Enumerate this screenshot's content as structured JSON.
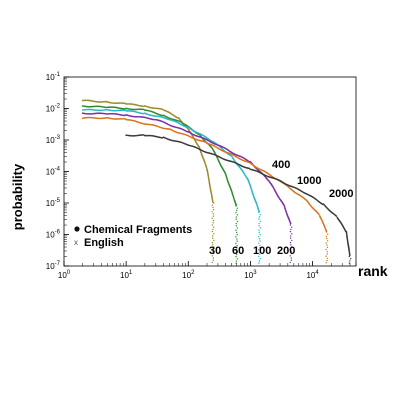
{
  "chart_data": {
    "type": "scatter",
    "xlabel": "rank",
    "ylabel": "probability",
    "x_scale": "log",
    "y_scale": "log",
    "xlim": [
      1,
      50000
    ],
    "ylim": [
      1e-07,
      0.1
    ],
    "x_ticks": [
      {
        "base": "10",
        "exp": "0"
      },
      {
        "base": "10",
        "exp": "1"
      },
      {
        "base": "10",
        "exp": "2"
      },
      {
        "base": "10",
        "exp": "3"
      },
      {
        "base": "10",
        "exp": "4"
      }
    ],
    "y_ticks": [
      {
        "base": "10",
        "exp": "-1"
      },
      {
        "base": "10",
        "exp": "-2"
      },
      {
        "base": "10",
        "exp": "-3"
      },
      {
        "base": "10",
        "exp": "-4"
      },
      {
        "base": "10",
        "exp": "-5"
      },
      {
        "base": "10",
        "exp": "-6"
      },
      {
        "base": "10",
        "exp": "-7"
      }
    ],
    "legend": {
      "placement": "bottom-left",
      "entries": [
        {
          "label": "Chemical Fragments",
          "marker": "●"
        },
        {
          "label": "English",
          "marker": "x"
        }
      ]
    },
    "annotations": [
      "400",
      "1000",
      "2000",
      "30",
      "60",
      "100",
      "200"
    ],
    "series": [
      {
        "color": "#9c8a2c",
        "cutoff_rank": 250,
        "points": [
          [
            2,
            0.018
          ],
          [
            5,
            0.016
          ],
          [
            10,
            0.014
          ],
          [
            20,
            0.012
          ],
          [
            40,
            0.009
          ],
          [
            70,
            0.005
          ],
          [
            100,
            0.0022
          ],
          [
            150,
            0.0006
          ],
          [
            200,
            0.00012
          ],
          [
            250,
            1e-05
          ]
        ]
      },
      {
        "color": "#2e8b2e",
        "cutoff_rank": 600,
        "points": [
          [
            2,
            0.012
          ],
          [
            5,
            0.011
          ],
          [
            10,
            0.01
          ],
          [
            20,
            0.009
          ],
          [
            40,
            0.006
          ],
          [
            80,
            0.0035
          ],
          [
            150,
            0.0015
          ],
          [
            250,
            0.0005
          ],
          [
            400,
            8e-05
          ],
          [
            600,
            8e-06
          ]
        ]
      },
      {
        "color": "#29b6c9",
        "cutoff_rank": 1400,
        "points": [
          [
            2,
            0.009
          ],
          [
            5,
            0.009
          ],
          [
            10,
            0.0085
          ],
          [
            20,
            0.007
          ],
          [
            50,
            0.0045
          ],
          [
            100,
            0.0025
          ],
          [
            250,
            0.0009
          ],
          [
            500,
            0.0003
          ],
          [
            900,
            6e-05
          ],
          [
            1400,
            5e-06
          ]
        ]
      },
      {
        "color": "#7b2fa6",
        "cutoff_rank": 4500,
        "points": [
          [
            2,
            0.007
          ],
          [
            5,
            0.0068
          ],
          [
            10,
            0.0062
          ],
          [
            30,
            0.0045
          ],
          [
            100,
            0.0018
          ],
          [
            300,
            0.0007
          ],
          [
            1000,
            0.0002
          ],
          [
            2000,
            5e-05
          ],
          [
            3500,
            8e-06
          ],
          [
            4500,
            2e-06
          ]
        ]
      },
      {
        "color": "#d8741c",
        "cutoff_rank": 17000,
        "points": [
          [
            2,
            0.005
          ],
          [
            5,
            0.005
          ],
          [
            10,
            0.0045
          ],
          [
            50,
            0.0022
          ],
          [
            200,
            0.0008
          ],
          [
            1000,
            0.00018
          ],
          [
            3000,
            5e-05
          ],
          [
            8000,
            1.2e-05
          ],
          [
            13000,
            4e-06
          ],
          [
            17000,
            1.2e-06
          ]
        ]
      },
      {
        "color": "#3a3a3a",
        "cutoff_rank": 40000,
        "points": [
          [
            10,
            0.0014
          ],
          [
            20,
            0.0014
          ],
          [
            40,
            0.0012
          ],
          [
            100,
            0.0007
          ],
          [
            300,
            0.0003
          ],
          [
            1000,
            0.00012
          ],
          [
            3000,
            5e-05
          ],
          [
            8000,
            2e-05
          ],
          [
            15000,
            9e-06
          ],
          [
            25000,
            3.5e-06
          ],
          [
            35000,
            1.2e-06
          ],
          [
            40000,
            2e-07
          ]
        ]
      }
    ]
  }
}
